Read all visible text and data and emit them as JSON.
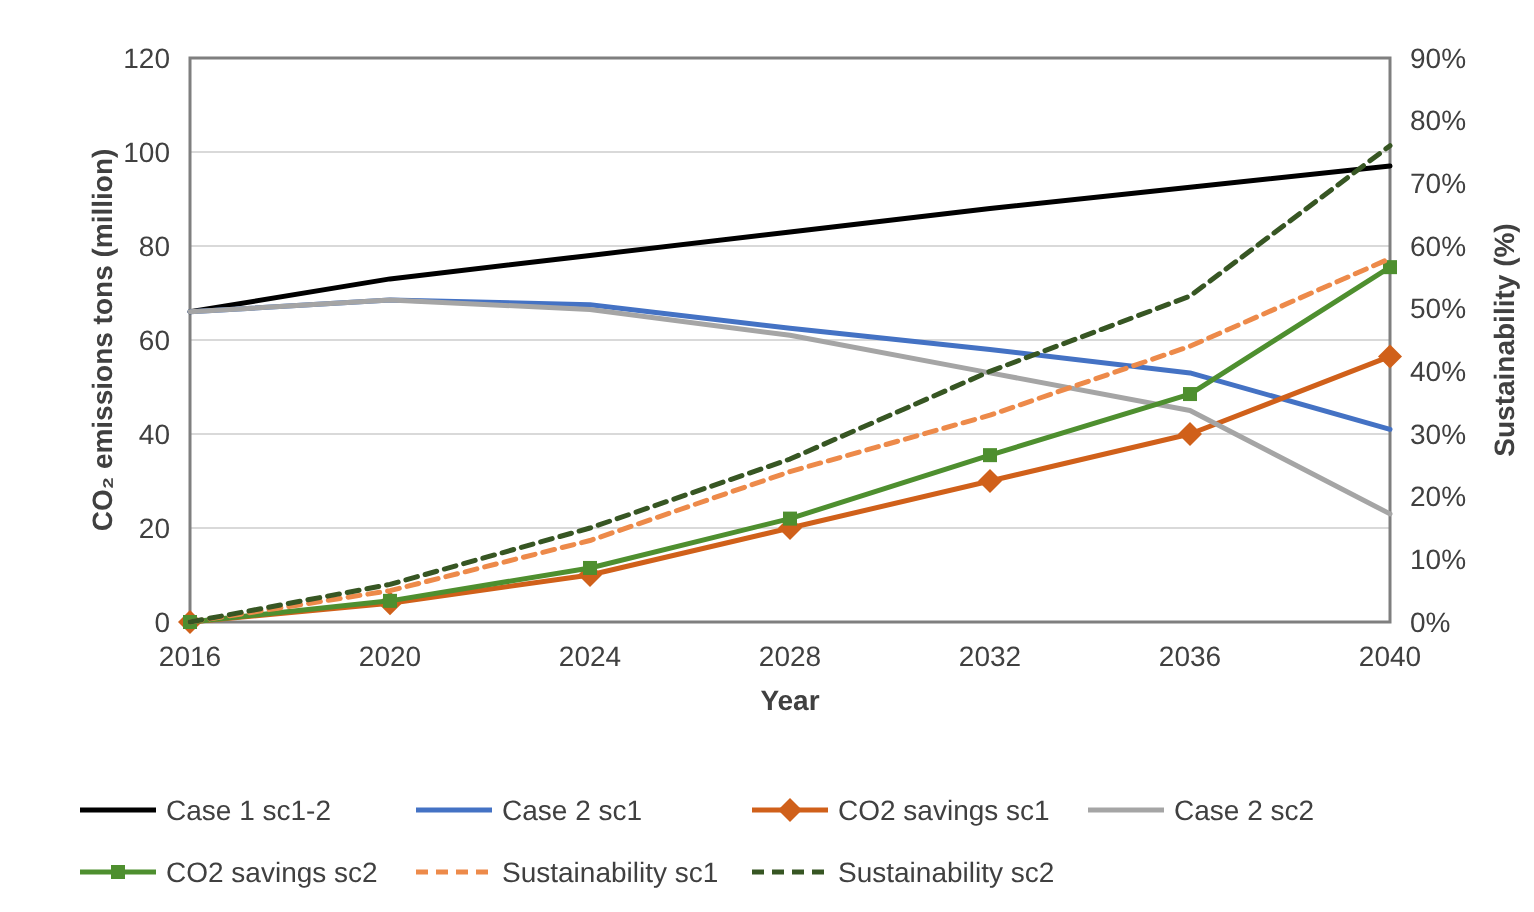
{
  "chart_data": {
    "type": "line",
    "xlabel": "Year",
    "ylabel": "CO₂ emissions tons (million)",
    "y2label": "Sustainability (%)",
    "categories": [
      "2016",
      "2020",
      "2024",
      "2028",
      "2032",
      "2036",
      "2040"
    ],
    "ylim": [
      0,
      120
    ],
    "yticks": [
      0,
      20,
      40,
      60,
      80,
      100,
      120
    ],
    "y2lim": [
      0,
      90
    ],
    "y2ticks": [
      {
        "value": 0,
        "label": "0%"
      },
      {
        "value": 10,
        "label": "10%"
      },
      {
        "value": 20,
        "label": "20%"
      },
      {
        "value": 30,
        "label": "30%"
      },
      {
        "value": 40,
        "label": "40%"
      },
      {
        "value": 50,
        "label": "50%"
      },
      {
        "value": 60,
        "label": "60%"
      },
      {
        "value": 70,
        "label": "70%"
      },
      {
        "value": 80,
        "label": "80%"
      },
      {
        "value": 90,
        "label": "90%"
      }
    ],
    "grid": "y",
    "legend": "bottom",
    "series": [
      {
        "name": "Case 1 sc1-2",
        "color": "#000000",
        "values": [
          66,
          73,
          78,
          83,
          88,
          92.5,
          97
        ]
      },
      {
        "name": "Case 2 sc1",
        "color": "#4472c4",
        "values": [
          66,
          68.5,
          67.5,
          62.5,
          58,
          53,
          41
        ]
      },
      {
        "name": "CO2 savings sc1",
        "color": "#d0601a",
        "marker": "diamond",
        "values": [
          0,
          4,
          10,
          20,
          30,
          40,
          56.5
        ]
      },
      {
        "name": "Case 2 sc2",
        "color": "#a5a5a5",
        "values": [
          66,
          68.5,
          66.5,
          61,
          53,
          45,
          23
        ]
      },
      {
        "name": "CO2 savings sc2",
        "color": "#4e8f2f",
        "marker": "square",
        "values": [
          0,
          4.5,
          11.5,
          22,
          35.5,
          48.5,
          75.5
        ]
      },
      {
        "name": "Sustainability sc1",
        "color": "#ed8a4a",
        "line_style": "dashed",
        "axis": "y2",
        "values": [
          0,
          5,
          13,
          24,
          33,
          44,
          58
        ]
      },
      {
        "name": "Sustainability sc2",
        "color": "#375623",
        "line_style": "dashed",
        "axis": "y2",
        "values": [
          0,
          6,
          15,
          26,
          40,
          52,
          76
        ]
      }
    ]
  }
}
